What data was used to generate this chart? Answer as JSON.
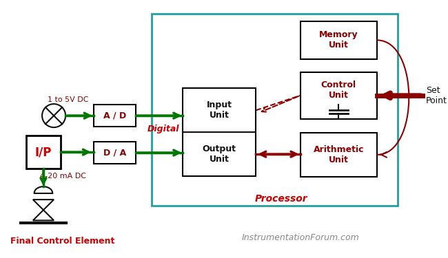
{
  "bg_color": "#ffffff",
  "label_1to5v": "1 to 5V DC",
  "label_4to20ma": "4-20 mA DC",
  "label_digital": "Digital",
  "label_processor": "Processor",
  "label_setpoint": "Set\nPoint",
  "label_fce": "Final Control Element",
  "label_watermark": "InstrumentationForum.com",
  "box_ad": "A / D",
  "box_da": "D / A",
  "box_ip": "I/P",
  "box_memory": "Memory\nUnit",
  "box_control": "Control\nUnit",
  "box_arithmetic": "Arithmetic\nUnit",
  "box_input": "Input\nUnit",
  "box_output": "Output\nUnit",
  "green_color": "#007700",
  "dark_red": "#8B0000",
  "red_color": "#cc0000",
  "teal_color": "#20a0a0",
  "black_color": "#111111",
  "gray_color": "#888888",
  "figsize": [
    6.5,
    3.75
  ],
  "dpi": 100
}
